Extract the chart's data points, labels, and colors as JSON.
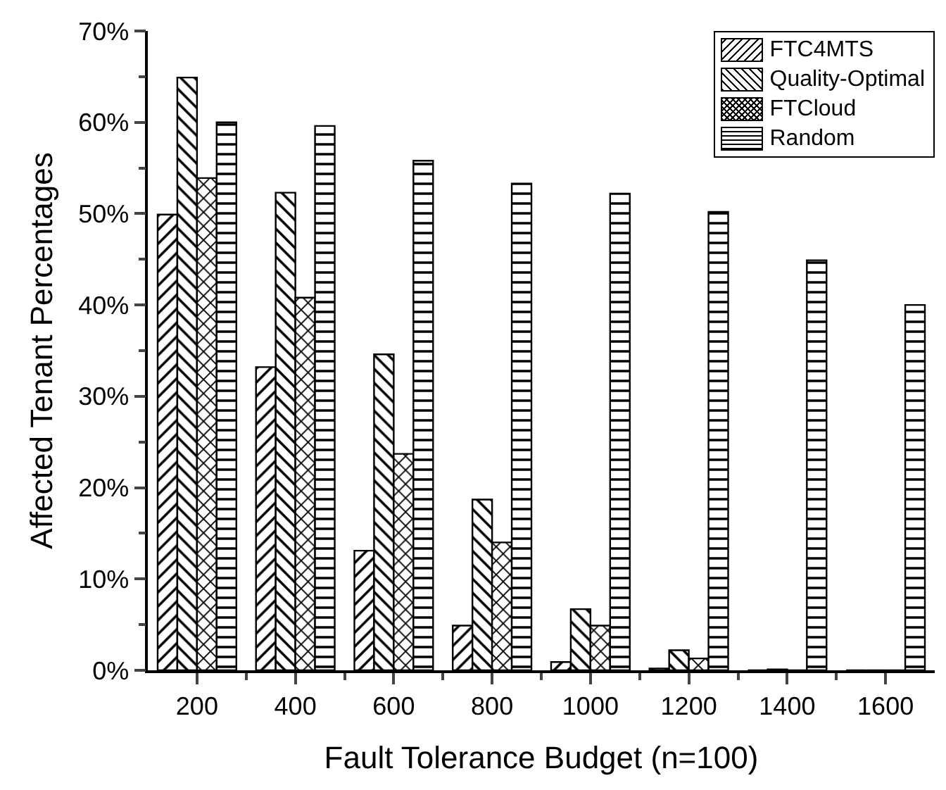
{
  "chart_data": {
    "type": "bar",
    "xlabel": "Fault Tolerance Budget (n=100)",
    "ylabel": "Affected Tenant Percentages",
    "categories": [
      "200",
      "400",
      "600",
      "800",
      "1000",
      "1200",
      "1400",
      "1600"
    ],
    "series": [
      {
        "name": "FTC4MTS",
        "color": "#000000",
        "values": [
          49.9,
          33.2,
          13.1,
          4.9,
          0.9,
          0.2,
          0,
          0
        ]
      },
      {
        "name": "Quality-Optimal",
        "color": "#000000",
        "values": [
          64.9,
          52.3,
          34.6,
          18.7,
          6.7,
          2.2,
          0.1,
          0
        ]
      },
      {
        "name": "FTCloud",
        "color": "#000000",
        "values": [
          53.9,
          40.8,
          23.7,
          14.0,
          4.9,
          1.3,
          0,
          0
        ]
      },
      {
        "name": "Random",
        "color": "#000000",
        "values": [
          60.0,
          59.6,
          55.8,
          53.3,
          52.2,
          50.2,
          44.9,
          40.0
        ]
      }
    ],
    "ylim": [
      0,
      70
    ],
    "yticks": [
      {
        "value": 0,
        "label": "0%"
      },
      {
        "value": 10,
        "label": "10%"
      },
      {
        "value": 20,
        "label": "20%"
      },
      {
        "value": 30,
        "label": "30%"
      },
      {
        "value": 40,
        "label": "40%"
      },
      {
        "value": 50,
        "label": "50%"
      },
      {
        "value": 60,
        "label": "60%"
      },
      {
        "value": 70,
        "label": "70%"
      }
    ],
    "grid": false,
    "legend": "top right"
  }
}
